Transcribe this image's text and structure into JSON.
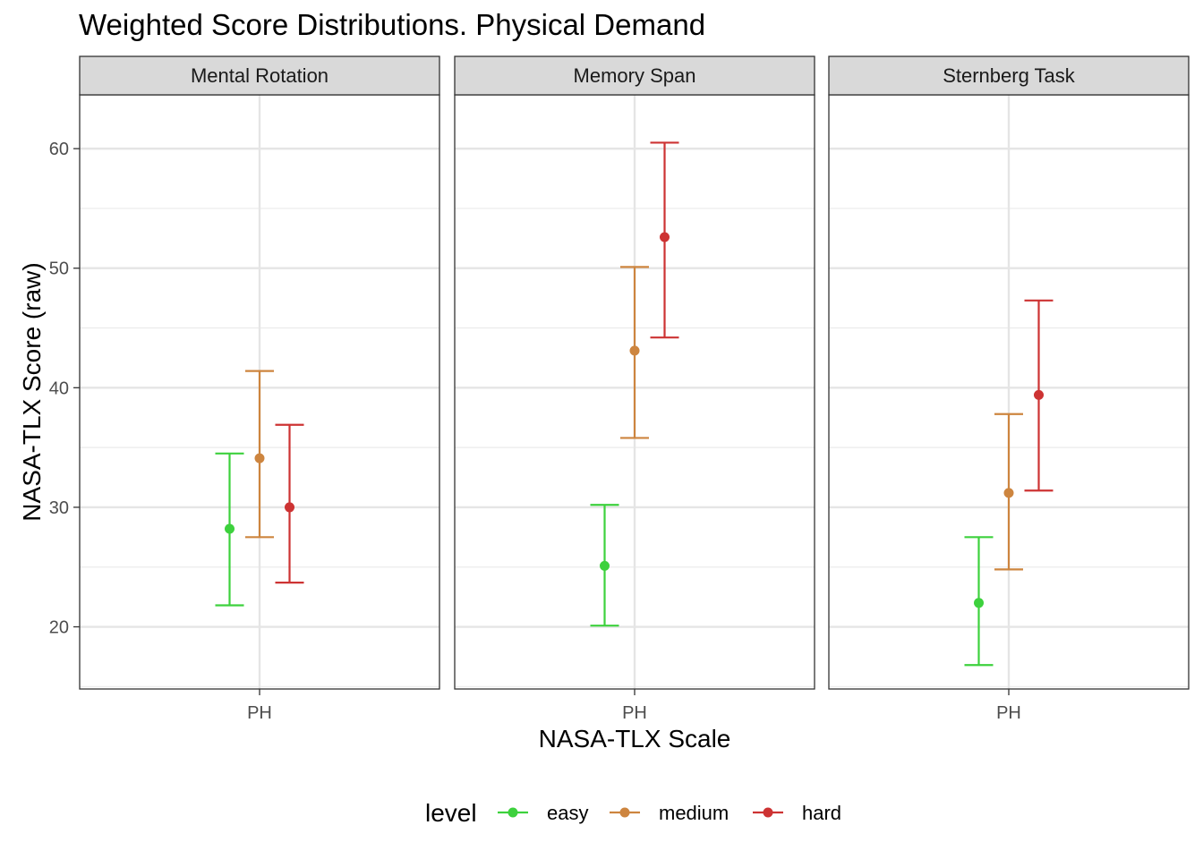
{
  "chart_data": {
    "type": "errorbar",
    "title": "Weighted Score Distributions. Physical Demand",
    "xlabel": "NASA-TLX Scale",
    "ylabel": "NASA-TLX Score (raw)",
    "ylim": [
      14.8,
      64.5
    ],
    "yticks": [
      20,
      30,
      40,
      50,
      60
    ],
    "categories": [
      "PH"
    ],
    "grid": true,
    "legend": {
      "title": "level",
      "position": "bottom",
      "entries": [
        {
          "name": "easy",
          "color": "#3DD13D"
        },
        {
          "name": "medium",
          "color": "#CD853F"
        },
        {
          "name": "hard",
          "color": "#CD3333"
        }
      ]
    },
    "facets": [
      {
        "label": "Mental Rotation",
        "series": [
          {
            "name": "easy",
            "x": "PH",
            "mean": 28.2,
            "lower": 21.8,
            "upper": 34.5
          },
          {
            "name": "medium",
            "x": "PH",
            "mean": 34.1,
            "lower": 27.5,
            "upper": 41.4
          },
          {
            "name": "hard",
            "x": "PH",
            "mean": 30.0,
            "lower": 23.7,
            "upper": 36.9
          }
        ]
      },
      {
        "label": "Memory Span",
        "series": [
          {
            "name": "easy",
            "x": "PH",
            "mean": 25.1,
            "lower": 20.1,
            "upper": 30.2
          },
          {
            "name": "medium",
            "x": "PH",
            "mean": 43.1,
            "lower": 35.8,
            "upper": 50.1
          },
          {
            "name": "hard",
            "x": "PH",
            "mean": 52.6,
            "lower": 44.2,
            "upper": 60.5
          }
        ]
      },
      {
        "label": "Sternberg Task",
        "series": [
          {
            "name": "easy",
            "x": "PH",
            "mean": 22.0,
            "lower": 16.8,
            "upper": 27.5
          },
          {
            "name": "medium",
            "x": "PH",
            "mean": 31.2,
            "lower": 24.8,
            "upper": 37.8
          },
          {
            "name": "hard",
            "x": "PH",
            "mean": 39.4,
            "lower": 31.4,
            "upper": 47.3
          }
        ]
      }
    ]
  }
}
